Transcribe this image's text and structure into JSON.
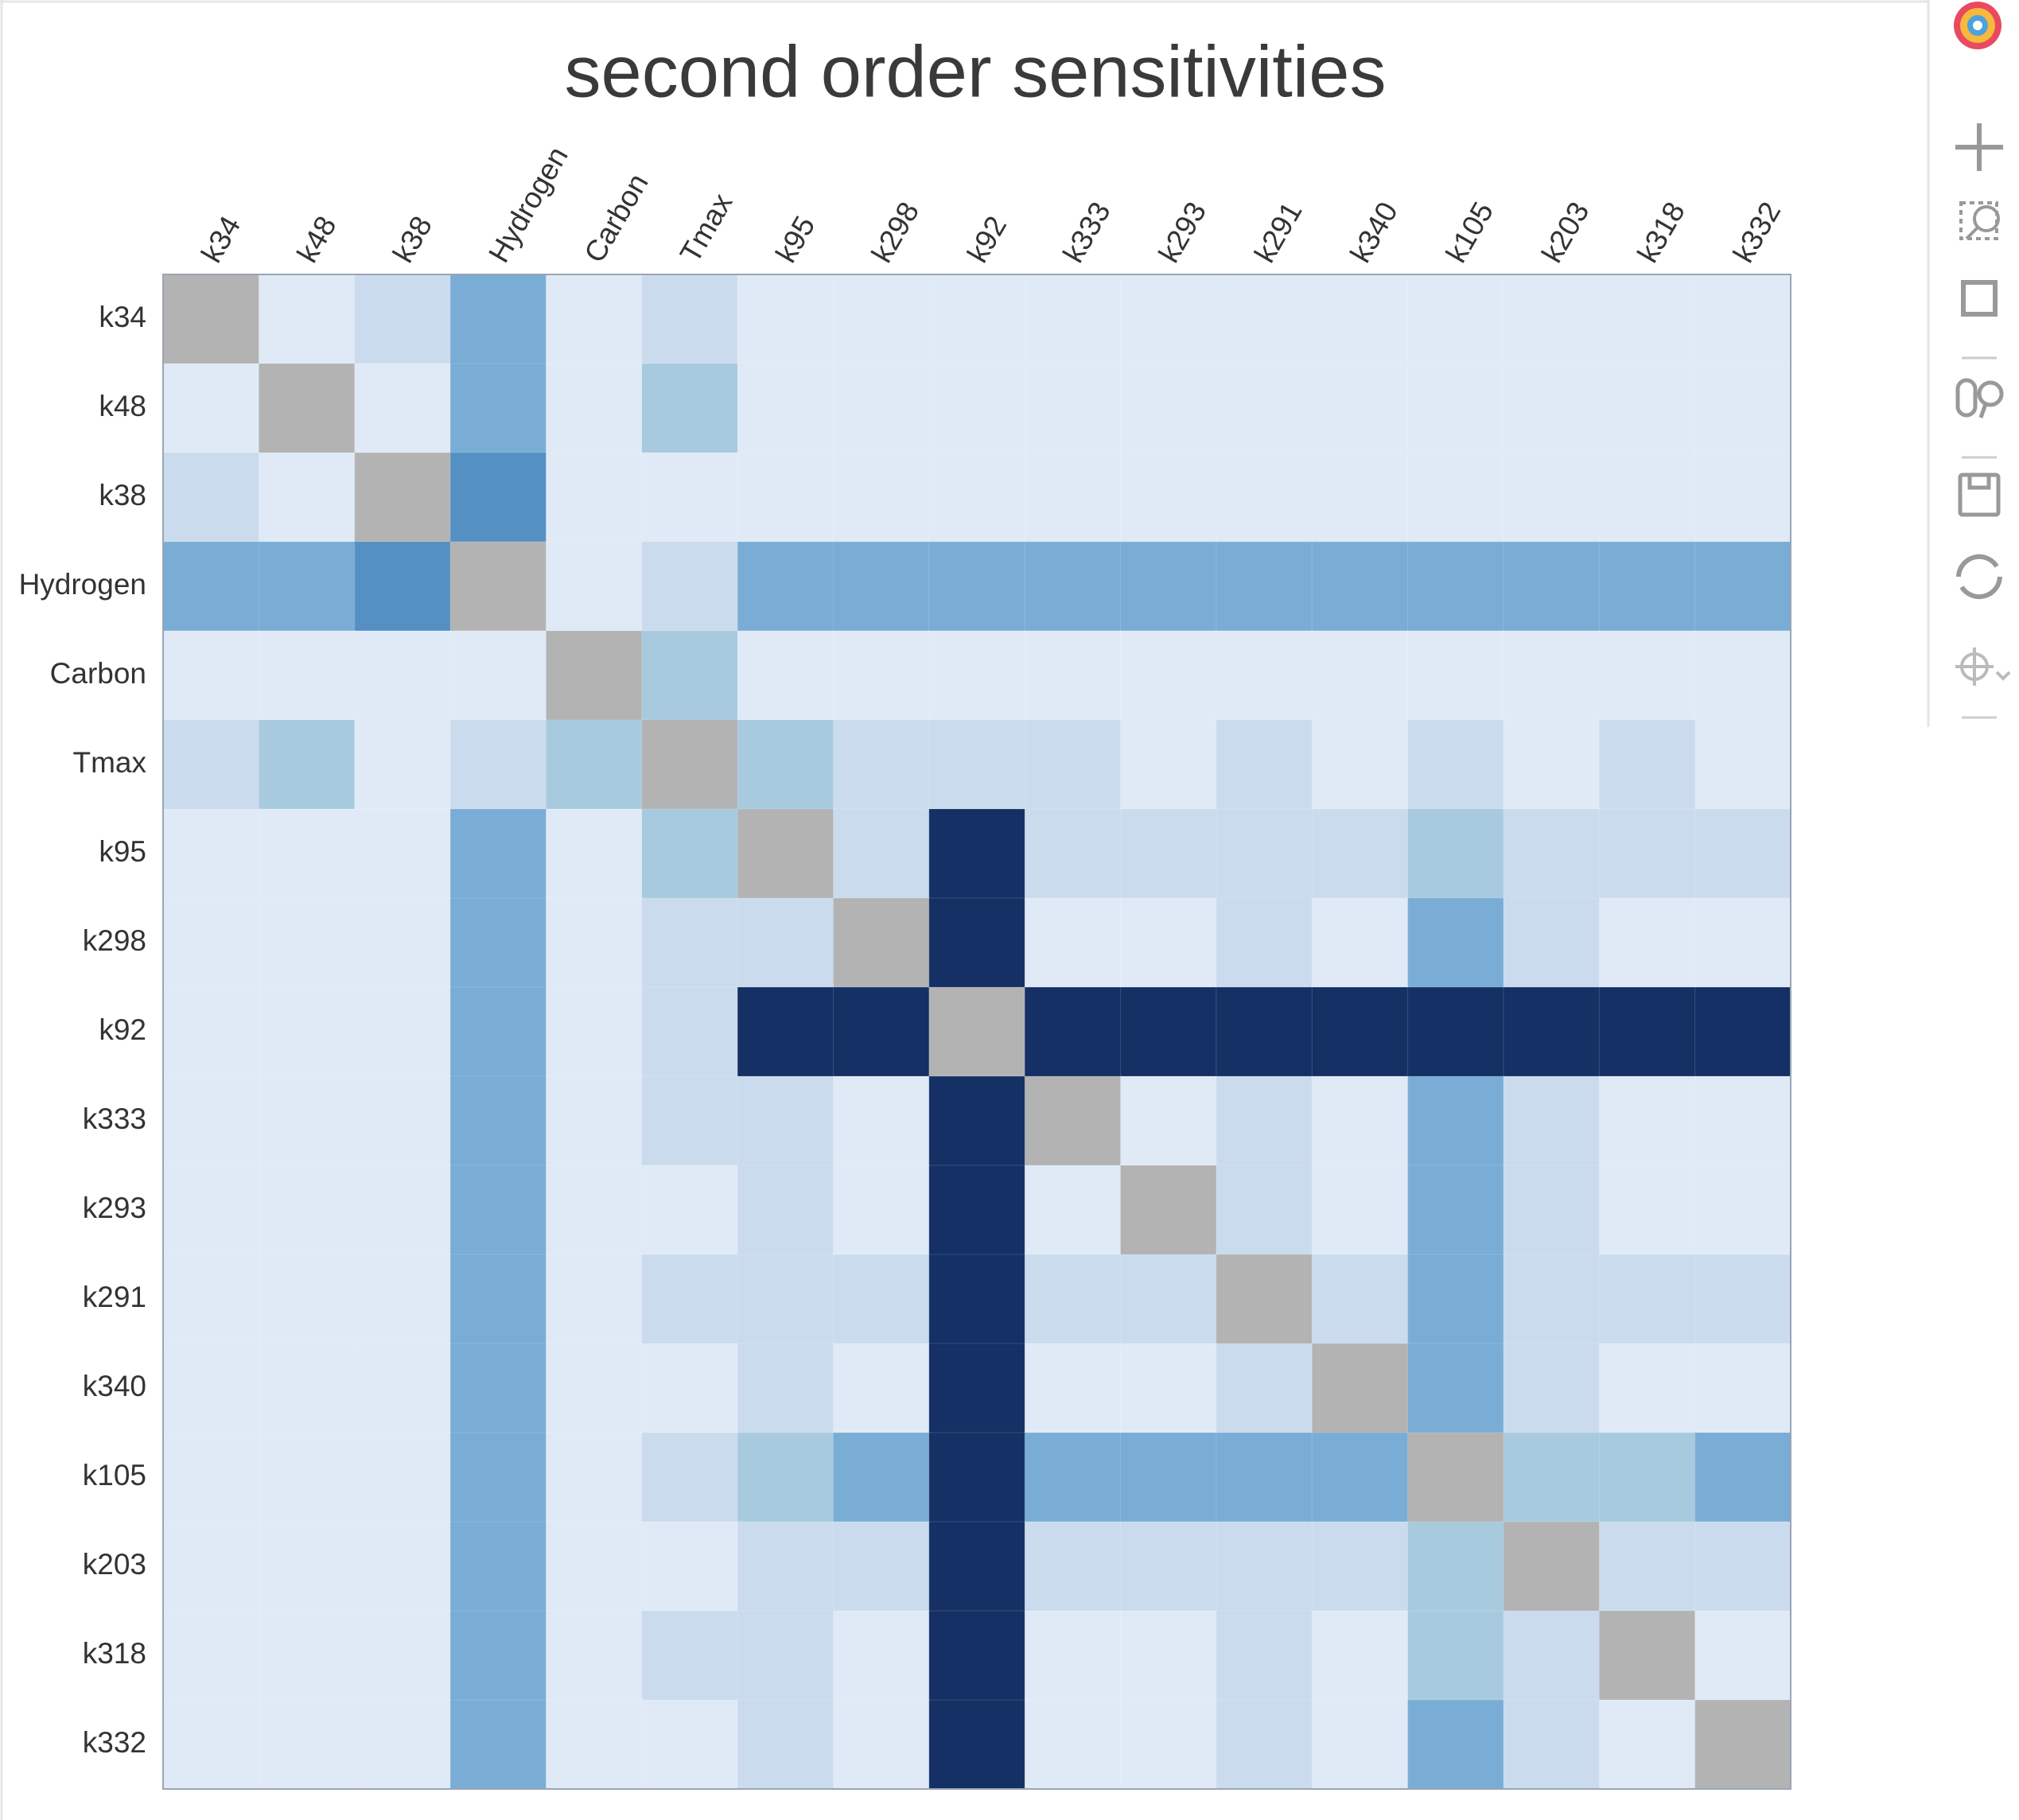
{
  "chart_data": {
    "type": "heatmap",
    "title": "second order sensitivities",
    "x_categories": [
      "k34",
      "k48",
      "k38",
      "Hydrogen",
      "Carbon",
      "Tmax",
      "k95",
      "k298",
      "k92",
      "k333",
      "k293",
      "k291",
      "k340",
      "k105",
      "k203",
      "k318",
      "k332"
    ],
    "y_categories": [
      "k34",
      "k48",
      "k38",
      "Hydrogen",
      "Carbon",
      "Tmax",
      "k95",
      "k298",
      "k92",
      "k333",
      "k293",
      "k291",
      "k340",
      "k105",
      "k203",
      "k318",
      "k332"
    ],
    "palette": [
      "#e0eaf6",
      "#cadbed",
      "#a7cadf",
      "#79add5",
      "#5590c4",
      "#143064"
    ],
    "nan_color": "#b3b3b3",
    "values": [
      [
        null,
        0,
        1,
        3,
        0,
        1,
        0,
        0,
        0,
        0,
        0,
        0,
        0,
        0,
        0,
        0,
        0
      ],
      [
        0,
        null,
        0,
        3,
        0,
        2,
        0,
        0,
        0,
        0,
        0,
        0,
        0,
        0,
        0,
        0,
        0
      ],
      [
        1,
        0,
        null,
        4,
        0,
        0,
        0,
        0,
        0,
        0,
        0,
        0,
        0,
        0,
        0,
        0,
        0
      ],
      [
        3,
        3,
        4,
        null,
        0,
        1,
        3,
        3,
        3,
        3,
        3,
        3,
        3,
        3,
        3,
        3,
        3
      ],
      [
        0,
        0,
        0,
        0,
        null,
        2,
        0,
        0,
        0,
        0,
        0,
        0,
        0,
        0,
        0,
        0,
        0
      ],
      [
        1,
        2,
        0,
        1,
        2,
        null,
        2,
        1,
        1,
        1,
        0,
        1,
        0,
        1,
        0,
        1,
        0
      ],
      [
        0,
        0,
        0,
        3,
        0,
        2,
        null,
        1,
        5,
        1,
        1,
        1,
        1,
        2,
        1,
        1,
        1
      ],
      [
        0,
        0,
        0,
        3,
        0,
        1,
        1,
        null,
        5,
        0,
        0,
        1,
        0,
        3,
        1,
        0,
        0
      ],
      [
        0,
        0,
        0,
        3,
        0,
        1,
        5,
        5,
        null,
        5,
        5,
        5,
        5,
        5,
        5,
        5,
        5
      ],
      [
        0,
        0,
        0,
        3,
        0,
        1,
        1,
        0,
        5,
        null,
        0,
        1,
        0,
        3,
        1,
        0,
        0
      ],
      [
        0,
        0,
        0,
        3,
        0,
        0,
        1,
        0,
        5,
        0,
        null,
        1,
        0,
        3,
        1,
        0,
        0
      ],
      [
        0,
        0,
        0,
        3,
        0,
        1,
        1,
        1,
        5,
        1,
        1,
        null,
        1,
        3,
        1,
        1,
        1
      ],
      [
        0,
        0,
        0,
        3,
        0,
        0,
        1,
        0,
        5,
        0,
        0,
        1,
        null,
        3,
        1,
        0,
        0
      ],
      [
        0,
        0,
        0,
        3,
        0,
        1,
        2,
        3,
        5,
        3,
        3,
        3,
        3,
        null,
        2,
        2,
        3
      ],
      [
        0,
        0,
        0,
        3,
        0,
        0,
        1,
        1,
        5,
        1,
        1,
        1,
        1,
        2,
        null,
        1,
        1
      ],
      [
        0,
        0,
        0,
        3,
        0,
        1,
        1,
        0,
        5,
        0,
        0,
        1,
        0,
        2,
        1,
        null,
        0
      ],
      [
        0,
        0,
        0,
        3,
        0,
        0,
        1,
        0,
        5,
        0,
        0,
        1,
        0,
        3,
        1,
        0,
        null
      ]
    ]
  }
}
